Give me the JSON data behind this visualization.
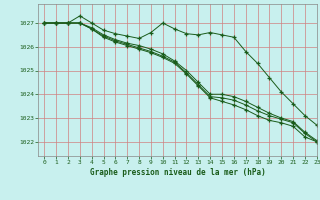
{
  "title": "Graphe pression niveau de la mer (hPa)",
  "bg_color": "#c8f0ee",
  "grid_color": "#d08080",
  "line_color": "#1a5c1a",
  "xlim": [
    -0.5,
    23
  ],
  "ylim": [
    1021.4,
    1027.8
  ],
  "yticks": [
    1022,
    1023,
    1024,
    1025,
    1026,
    1027
  ],
  "xticks": [
    0,
    1,
    2,
    3,
    4,
    5,
    6,
    7,
    8,
    9,
    10,
    11,
    12,
    13,
    14,
    15,
    16,
    17,
    18,
    19,
    20,
    21,
    22,
    23
  ],
  "series": [
    [
      1027.0,
      1027.0,
      1027.0,
      1027.3,
      1027.0,
      1026.7,
      1026.55,
      1026.45,
      1026.35,
      1026.6,
      1027.0,
      1026.75,
      1026.55,
      1026.5,
      1026.6,
      1026.5,
      1026.4,
      1025.8,
      1025.3,
      1024.7,
      1024.1,
      1023.6,
      1023.1,
      1022.7
    ],
    [
      1027.0,
      1027.0,
      1027.0,
      1027.0,
      1026.8,
      1026.5,
      1026.3,
      1026.15,
      1026.05,
      1025.9,
      1025.7,
      1025.4,
      1025.0,
      1024.5,
      1024.0,
      1024.0,
      1023.9,
      1023.7,
      1023.45,
      1023.2,
      1023.0,
      1022.85,
      1022.4,
      1022.05
    ],
    [
      1027.0,
      1027.0,
      1027.0,
      1027.0,
      1026.75,
      1026.45,
      1026.25,
      1026.1,
      1025.95,
      1025.8,
      1025.6,
      1025.35,
      1024.9,
      1024.4,
      1023.9,
      1023.85,
      1023.75,
      1023.55,
      1023.3,
      1023.1,
      1022.95,
      1022.8,
      1022.35,
      1022.0
    ],
    [
      1027.0,
      1027.0,
      1027.0,
      1027.0,
      1026.75,
      1026.4,
      1026.2,
      1026.05,
      1025.9,
      1025.75,
      1025.55,
      1025.3,
      1024.85,
      1024.35,
      1023.85,
      1023.7,
      1023.55,
      1023.35,
      1023.1,
      1022.9,
      1022.8,
      1022.65,
      1022.2,
      1022.0
    ]
  ]
}
